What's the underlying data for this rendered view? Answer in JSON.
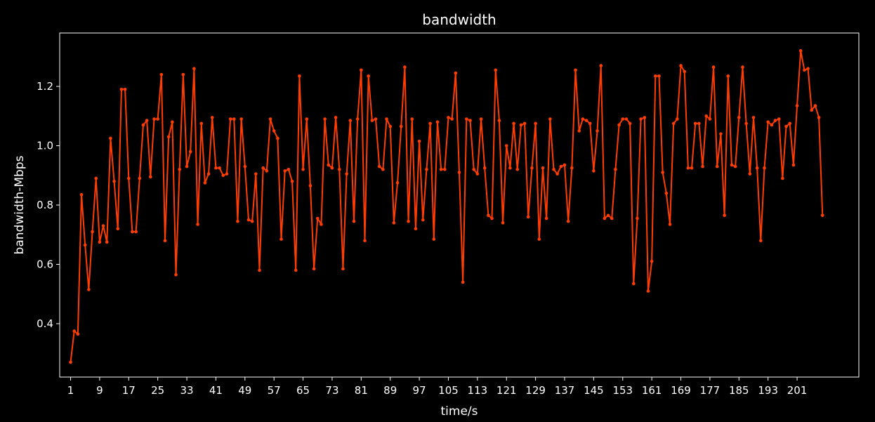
{
  "chart_data": {
    "type": "line",
    "title": "bandwidth",
    "xlabel": "time/s",
    "ylabel": "bandwidth-Mbps",
    "grid": false,
    "legend": "none",
    "xlim": [
      -2,
      218
    ],
    "ylim": [
      0.22,
      1.38
    ],
    "x_ticks": [
      1,
      9,
      17,
      25,
      33,
      41,
      49,
      57,
      65,
      73,
      81,
      89,
      97,
      105,
      113,
      121,
      129,
      137,
      145,
      153,
      161,
      169,
      177,
      185,
      193,
      201
    ],
    "y_ticks": [
      0.4,
      0.6,
      0.8,
      1.0,
      1.2
    ],
    "y_tick_labels": [
      "0.4",
      "0.6",
      "0.8",
      "1.0",
      "1.2"
    ],
    "colors": {
      "background": "#000000",
      "axes": "#ffffff",
      "line": "#ff3d00",
      "marker": "#ff3d00",
      "text": "#ffffff"
    },
    "series": [
      {
        "x_start": 1,
        "x_step": 1,
        "values": [
          0.27,
          0.375,
          0.365,
          0.835,
          0.665,
          0.515,
          0.71,
          0.89,
          0.675,
          0.73,
          0.675,
          1.025,
          0.88,
          0.72,
          1.19,
          1.19,
          0.89,
          0.71,
          0.71,
          0.89,
          1.07,
          1.085,
          0.895,
          1.09,
          1.09,
          1.24,
          0.68,
          1.03,
          1.08,
          0.565,
          0.92,
          1.24,
          0.93,
          0.98,
          1.26,
          0.735,
          1.075,
          0.875,
          0.905,
          1.095,
          0.925,
          0.925,
          0.9,
          0.905,
          1.09,
          1.09,
          0.745,
          1.09,
          0.93,
          0.75,
          0.745,
          0.905,
          0.58,
          0.925,
          0.915,
          1.09,
          1.05,
          1.025,
          0.685,
          0.915,
          0.92,
          0.88,
          0.58,
          1.235,
          0.92,
          1.09,
          0.865,
          0.585,
          0.755,
          0.735,
          1.09,
          0.935,
          0.925,
          1.095,
          0.92,
          0.585,
          0.905,
          1.085,
          0.745,
          1.09,
          1.255,
          0.68,
          1.235,
          1.085,
          1.09,
          0.93,
          0.92,
          1.09,
          1.065,
          0.74,
          0.875,
          1.065,
          1.265,
          0.745,
          1.09,
          0.72,
          1.015,
          0.75,
          0.92,
          1.075,
          0.685,
          1.08,
          0.92,
          0.92,
          1.095,
          1.09,
          1.245,
          0.91,
          0.54,
          1.09,
          1.085,
          0.92,
          0.905,
          1.09,
          0.925,
          0.765,
          0.755,
          1.255,
          1.085,
          0.74,
          1.0,
          0.925,
          1.075,
          0.92,
          1.07,
          1.075,
          0.76,
          0.925,
          1.075,
          0.685,
          0.925,
          0.755,
          1.09,
          0.92,
          0.905,
          0.93,
          0.935,
          0.745,
          0.925,
          1.255,
          1.05,
          1.09,
          1.085,
          1.075,
          0.915,
          1.05,
          1.27,
          0.755,
          0.765,
          0.755,
          0.92,
          1.07,
          1.09,
          1.09,
          1.075,
          0.535,
          0.755,
          1.09,
          1.095,
          0.51,
          0.61,
          1.235,
          1.235,
          0.91,
          0.84,
          0.735,
          1.075,
          1.09,
          1.27,
          1.25,
          0.925,
          0.925,
          1.075,
          1.075,
          0.93,
          1.1,
          1.09,
          1.265,
          0.93,
          1.04,
          0.765,
          1.235,
          0.935,
          0.93,
          1.095,
          1.265,
          1.075,
          0.905,
          1.095,
          0.925,
          0.68,
          0.925,
          1.08,
          1.07,
          1.085,
          1.09,
          0.89,
          1.065,
          1.075,
          0.935,
          1.135,
          1.32,
          1.255,
          1.26,
          1.12,
          1.135,
          1.095,
          0.765
        ]
      }
    ]
  }
}
